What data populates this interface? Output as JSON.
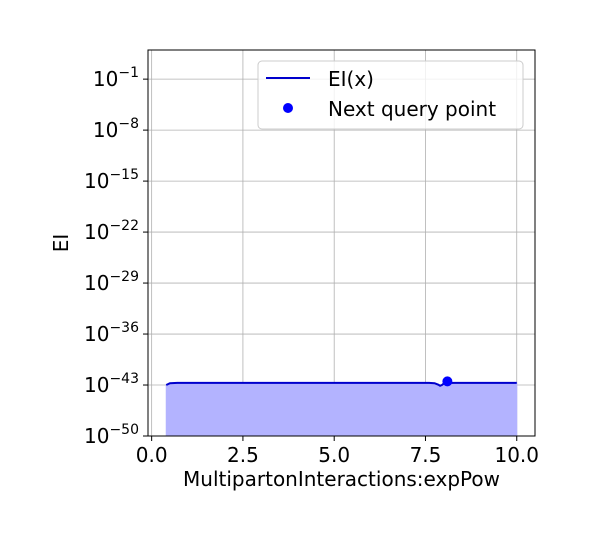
{
  "chart_data": {
    "type": "line",
    "title": "",
    "xlabel": "MultipartonInteractions:expPow",
    "ylabel": "EI",
    "yscale": "log",
    "xlim": [
      -0.1,
      10.5
    ],
    "ylim_exponent": [
      -50,
      3
    ],
    "grid": true,
    "x_ticks": [
      0.0,
      2.5,
      5.0,
      7.5,
      10.0
    ],
    "x_tick_labels": [
      "0.0",
      "2.5",
      "5.0",
      "7.5",
      "10.0"
    ],
    "y_tick_exponents": [
      -50,
      -43,
      -36,
      -29,
      -22,
      -15,
      -8,
      -1
    ],
    "y_tick_base": "10",
    "y_tick_sup_labels": [
      "−50",
      "−43",
      "−36",
      "−29",
      "−22",
      "−15",
      "−8",
      "−1"
    ],
    "series": [
      {
        "name": "EI(x)",
        "color": "#0000cc",
        "fill_color": "#b3b3ff",
        "x": [
          0.4,
          0.5,
          0.7,
          1.0,
          2.0,
          3.0,
          4.0,
          5.0,
          6.0,
          7.0,
          7.6,
          7.75,
          7.85,
          7.9,
          7.95,
          8.0,
          8.1,
          8.3,
          9.0,
          10.0
        ],
        "log10_y": [
          -43.0,
          -42.75,
          -42.7,
          -42.7,
          -42.7,
          -42.7,
          -42.7,
          -42.7,
          -42.7,
          -42.7,
          -42.7,
          -42.75,
          -42.95,
          -43.1,
          -43.0,
          -42.8,
          -42.72,
          -42.7,
          -42.7,
          -42.7
        ]
      }
    ],
    "next_query_point": {
      "name": "Next query point",
      "x": 8.1,
      "log10_y": -42.5,
      "color": "#0000ff"
    },
    "legend": {
      "location": "upper right",
      "entries": [
        "EI(x)",
        "Next query point"
      ]
    }
  }
}
